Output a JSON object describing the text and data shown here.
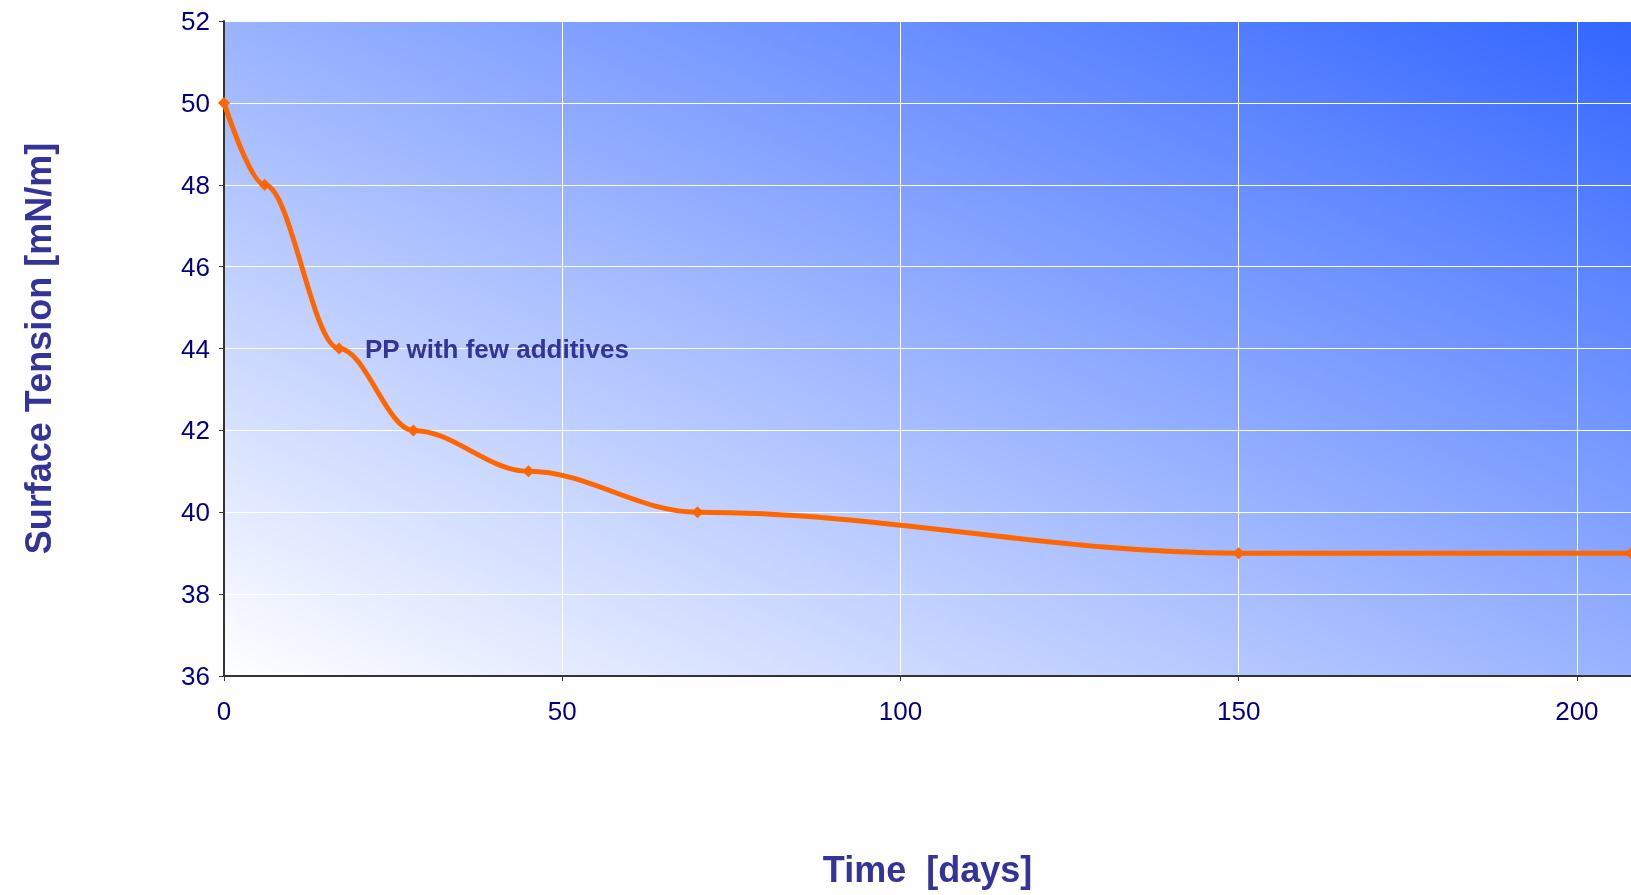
{
  "chart_data": {
    "type": "line",
    "xlabel": "Time  [days]",
    "ylabel": "Surface Tension [mN/m]",
    "x": [
      0,
      6,
      17,
      28,
      45,
      70,
      150,
      208
    ],
    "series": [
      {
        "name": "PP with few additives",
        "color": "#ff6600",
        "values": [
          50,
          48,
          44,
          42,
          41,
          40,
          39,
          39
        ]
      }
    ],
    "xlim": [
      0,
      208
    ],
    "xticks": [
      0,
      50,
      100,
      150,
      200
    ],
    "ylim": [
      36,
      52
    ],
    "yticks": [
      36,
      38,
      40,
      42,
      44,
      46,
      48,
      50,
      52
    ],
    "grid": true,
    "marker": "diamond",
    "line_style": "solid"
  }
}
